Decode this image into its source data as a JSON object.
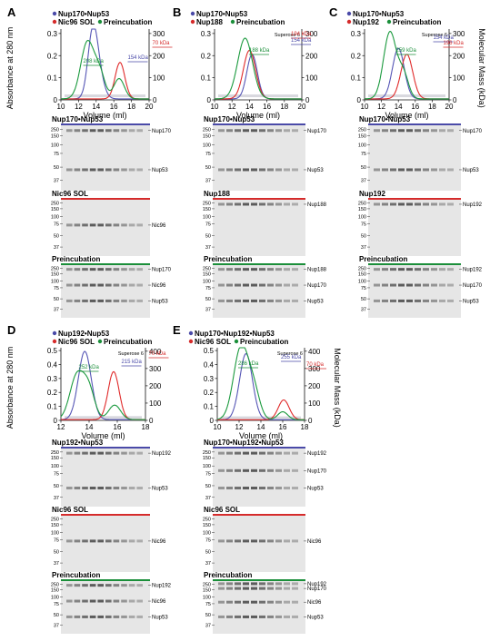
{
  "panels": [
    {
      "letter": "A",
      "legend": [
        {
          "text": "Nup170•Nup53",
          "color": "#4a4aa8"
        },
        {
          "text": "Nic96 SOL",
          "color": "#d52b2b"
        },
        {
          "text": "Preincubation",
          "color": "#1b8f3a"
        }
      ],
      "y_left_label": "Absorbance at 280 nm",
      "y_right_label": "",
      "x_label": "Volume (ml)",
      "column": "",
      "x_ticks": [
        "10",
        "12",
        "14",
        "16",
        "18",
        "20"
      ],
      "y_left_ticks": [
        "0",
        "0.1",
        "0.2",
        "0.3"
      ],
      "y_right_ticks": [
        "0",
        "100",
        "200",
        "300"
      ],
      "annotations": [
        {
          "text": "208 kDa",
          "color": "#1b8f3a"
        },
        {
          "text": "154 kDa",
          "color": "#4a4aa8"
        },
        {
          "text": "70 kDa",
          "color": "#d52b2b"
        }
      ],
      "gels": [
        {
          "title": "Nup170•Nup53",
          "color": "#4a4aa8",
          "bands": [
            "Nup170",
            "Nup53"
          ]
        },
        {
          "title": "Nic96 SOL",
          "color": "#d52b2b",
          "bands": [
            "Nic96"
          ]
        },
        {
          "title": "Preincubation",
          "color": "#1b8f3a",
          "bands": [
            "Nup170",
            "Nic96",
            "Nup53"
          ]
        }
      ]
    },
    {
      "letter": "B",
      "legend": [
        {
          "text": "Nup170•Nup53",
          "color": "#4a4aa8"
        },
        {
          "text": "Nup188",
          "color": "#d52b2b"
        },
        {
          "text": "Preincubation",
          "color": "#1b8f3a"
        }
      ],
      "y_left_label": "",
      "y_right_label": "",
      "x_label": "Volume (ml)",
      "column": "Superose 6",
      "x_ticks": [
        "10",
        "12",
        "14",
        "16",
        "18",
        "20"
      ],
      "y_left_ticks": [
        "0",
        "0.1",
        "0.2",
        "0.3"
      ],
      "y_right_ticks": [
        "0",
        "100",
        "200",
        "300"
      ],
      "annotations": [
        {
          "text": "188 kDa",
          "color": "#1b8f3a"
        },
        {
          "text": "194 kDa",
          "color": "#d52b2b"
        },
        {
          "text": "154 kDa",
          "color": "#4a4aa8"
        }
      ],
      "gels": [
        {
          "title": "Nup170•Nup53",
          "color": "#4a4aa8",
          "bands": [
            "Nup170",
            "Nup53"
          ]
        },
        {
          "title": "Nup188",
          "color": "#d52b2b",
          "bands": [
            "Nup188"
          ]
        },
        {
          "title": "Preincubation",
          "color": "#1b8f3a",
          "bands": [
            "Nup188",
            "Nup170",
            "Nup53"
          ]
        }
      ]
    },
    {
      "letter": "C",
      "legend": [
        {
          "text": "Nup170•Nup53",
          "color": "#4a4aa8"
        },
        {
          "text": "Nup192",
          "color": "#d52b2b"
        },
        {
          "text": "Preincubation",
          "color": "#1b8f3a"
        }
      ],
      "y_left_label": "",
      "y_right_label": "Molecular Mass (kDa)",
      "x_label": "Volume (ml)",
      "column": "Superose 6",
      "x_ticks": [
        "10",
        "12",
        "14",
        "16",
        "18",
        "20"
      ],
      "y_left_ticks": [
        "0",
        "0.1",
        "0.2",
        "0.3"
      ],
      "y_right_ticks": [
        "0",
        "100",
        "200",
        "300"
      ],
      "annotations": [
        {
          "text": "259 kDa",
          "color": "#1b8f3a"
        },
        {
          "text": "154 kDa",
          "color": "#4a4aa8"
        },
        {
          "text": "196 kDa",
          "color": "#d52b2b"
        }
      ],
      "gels": [
        {
          "title": "Nup170•Nup53",
          "color": "#4a4aa8",
          "bands": [
            "Nup170",
            "Nup53"
          ]
        },
        {
          "title": "Nup192",
          "color": "#d52b2b",
          "bands": [
            "Nup192"
          ]
        },
        {
          "title": "Preincubation",
          "color": "#1b8f3a",
          "bands": [
            "Nup192",
            "Nup170",
            "Nup53"
          ]
        }
      ]
    },
    {
      "letter": "D",
      "legend": [
        {
          "text": "Nup192•Nup53",
          "color": "#4a4aa8"
        },
        {
          "text": "Nic96 SOL",
          "color": "#d52b2b"
        },
        {
          "text": "Preincubation",
          "color": "#1b8f3a"
        }
      ],
      "y_left_label": "Absorbance at 280 nm",
      "y_right_label": "",
      "x_label": "Volume (ml)",
      "column": "Superose 6",
      "x_ticks": [
        "12",
        "14",
        "16",
        "18"
      ],
      "y_left_ticks": [
        "0",
        "0.1",
        "0.2",
        "0.3",
        "0.4",
        "0.5"
      ],
      "y_right_ticks": [
        "0",
        "100",
        "200",
        "300",
        "400"
      ],
      "annotations": [
        {
          "text": "252 kDa",
          "color": "#1b8f3a"
        },
        {
          "text": "215 kDa",
          "color": "#4a4aa8"
        },
        {
          "text": "70 kDa",
          "color": "#d52b2b"
        }
      ],
      "gels": [
        {
          "title": "Nup192•Nup53",
          "color": "#4a4aa8",
          "bands": [
            "Nup192",
            "Nup53"
          ]
        },
        {
          "title": "Nic96 SOL",
          "color": "#d52b2b",
          "bands": [
            "Nic96"
          ]
        },
        {
          "title": "Preincubation",
          "color": "#1b8f3a",
          "bands": [
            "Nup192",
            "Nic96",
            "Nup53"
          ]
        }
      ]
    },
    {
      "letter": "E",
      "legend": [
        {
          "text": "Nup170•Nup192•Nup53",
          "color": "#4a4aa8"
        },
        {
          "text": "Nic96 SOL",
          "color": "#d52b2b"
        },
        {
          "text": "Preincubation",
          "color": "#1b8f3a"
        }
      ],
      "y_left_label": "",
      "y_right_label": "Molecular Mass (kDa)",
      "x_label": "Volume (ml)",
      "column": "Superose 6",
      "x_ticks": [
        "10",
        "12",
        "14",
        "16",
        "18"
      ],
      "y_left_ticks": [
        "0",
        "0.1",
        "0.2",
        "0.3",
        "0.4",
        "0.5"
      ],
      "y_right_ticks": [
        "0",
        "100",
        "200",
        "300",
        "400"
      ],
      "annotations": [
        {
          "text": "286 kDa",
          "color": "#1b8f3a"
        },
        {
          "text": "255 kDa",
          "color": "#4a4aa8"
        },
        {
          "text": "70 kDa",
          "color": "#d52b2b"
        }
      ],
      "gels": [
        {
          "title": "Nup170•Nup192•Nup53",
          "color": "#4a4aa8",
          "bands": [
            "Nup192",
            "Nup170",
            "Nup53"
          ]
        },
        {
          "title": "Nic96 SOL",
          "color": "#d52b2b",
          "bands": [
            "Nic96"
          ]
        },
        {
          "title": "Preincubation",
          "color": "#1b8f3a",
          "bands": [
            "Nup192",
            "Nup170",
            "Nic96",
            "Nup53"
          ]
        }
      ]
    }
  ],
  "marker_ladder": [
    "250",
    "150",
    "100",
    "75",
    "50",
    "37"
  ]
}
